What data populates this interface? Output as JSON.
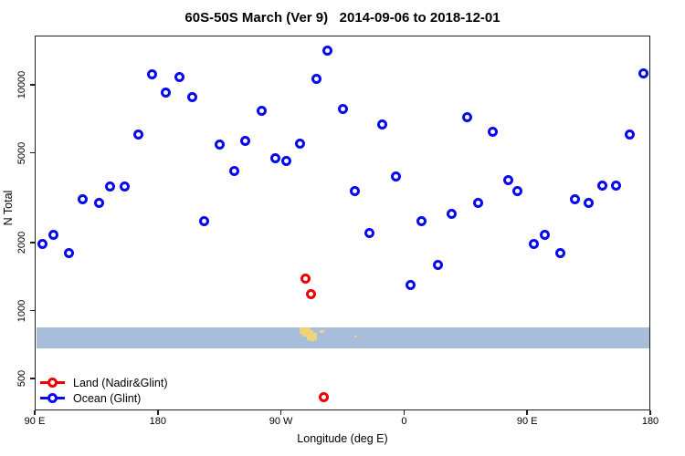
{
  "title": "60S-50S March (Ver 9)   2014-09-06 to 2018-12-01",
  "chart_data": {
    "type": "scatter",
    "title": "60S-50S March (Ver 9)   2014-09-06 to 2018-12-01",
    "xlabel": "Longitude (deg E)",
    "ylabel": "N Total",
    "x_axis": {
      "note": "longitude axis spans 450 deg eastward starting at 90E (wraps past 180 and 0)",
      "range_deg": [
        90,
        540
      ],
      "ticks": [
        {
          "deg": 90,
          "label": "90 E"
        },
        {
          "deg": 180,
          "label": "180"
        },
        {
          "deg": 270,
          "label": "90 W"
        },
        {
          "deg": 360,
          "label": "0"
        },
        {
          "deg": 450,
          "label": "90 E"
        },
        {
          "deg": 540,
          "label": "180"
        }
      ]
    },
    "y_axis": {
      "scale": "log",
      "range": [
        360,
        16600
      ],
      "ticks": [
        {
          "value": 500,
          "label": "500"
        },
        {
          "value": 1000,
          "label": "1000"
        },
        {
          "value": 2000,
          "label": "2000"
        },
        {
          "value": 5000,
          "label": "5000"
        },
        {
          "value": 10000,
          "label": "10000"
        }
      ]
    },
    "grid": "off",
    "legend_position": "bottom-left-inside",
    "series": [
      {
        "name": "Land (Nadir&Glint)",
        "color": "#ee0000",
        "points": [
          [
            288,
            1380
          ],
          [
            292,
            1180
          ],
          [
            301,
            415
          ]
        ]
      },
      {
        "name": "Ocean (Glint)",
        "color": "#0909ee",
        "points": [
          [
            96,
            1980
          ],
          [
            104,
            2170
          ],
          [
            115,
            1790
          ],
          [
            125,
            3100
          ],
          [
            137,
            2990
          ],
          [
            145,
            3560
          ],
          [
            156,
            3560
          ],
          [
            166,
            6000
          ],
          [
            176,
            11100
          ],
          [
            186,
            9280
          ],
          [
            196,
            10800
          ],
          [
            205,
            8780
          ],
          [
            214,
            2500
          ],
          [
            225,
            5460
          ],
          [
            236,
            4170
          ],
          [
            244,
            5620
          ],
          [
            256,
            7700
          ],
          [
            266,
            4750
          ],
          [
            274,
            4580
          ],
          [
            284,
            5510
          ],
          [
            296,
            10600
          ],
          [
            304,
            14200
          ],
          [
            315,
            7850
          ],
          [
            324,
            3370
          ],
          [
            335,
            2210
          ],
          [
            344,
            6700
          ],
          [
            354,
            3910
          ],
          [
            365,
            1300
          ],
          [
            373,
            2500
          ],
          [
            385,
            1590
          ],
          [
            395,
            2690
          ],
          [
            406,
            7160
          ],
          [
            414,
            3010
          ],
          [
            425,
            6220
          ],
          [
            436,
            3800
          ],
          [
            443,
            3370
          ],
          [
            455,
            1980
          ],
          [
            463,
            2170
          ],
          [
            474,
            1790
          ],
          [
            485,
            3100
          ],
          [
            495,
            3010
          ],
          [
            505,
            3570
          ],
          [
            515,
            3570
          ],
          [
            525,
            6000
          ],
          [
            535,
            11200
          ]
        ]
      }
    ],
    "map_strip": {
      "note": "horizontal strip map of the 60S-50S band: ocean band with small land patches",
      "ocean_color": "#a8bdd9",
      "land_color": "#eed27c",
      "n_top": 842,
      "n_bottom": 680,
      "land_patches": [
        {
          "d0": 283.5,
          "d1": 291.5,
          "t": 0.0,
          "b": 0.3
        },
        {
          "d0": 285.5,
          "d1": 293.5,
          "t": 0.13,
          "b": 0.45
        },
        {
          "d0": 289.0,
          "d1": 296.5,
          "t": 0.28,
          "b": 0.6
        },
        {
          "d0": 291.0,
          "d1": 294.5,
          "t": 0.48,
          "b": 0.65
        },
        {
          "d0": 298.0,
          "d1": 301.5,
          "t": 0.15,
          "b": 0.26
        },
        {
          "d0": 323.5,
          "d1": 325.5,
          "t": 0.4,
          "b": 0.5
        }
      ]
    }
  }
}
